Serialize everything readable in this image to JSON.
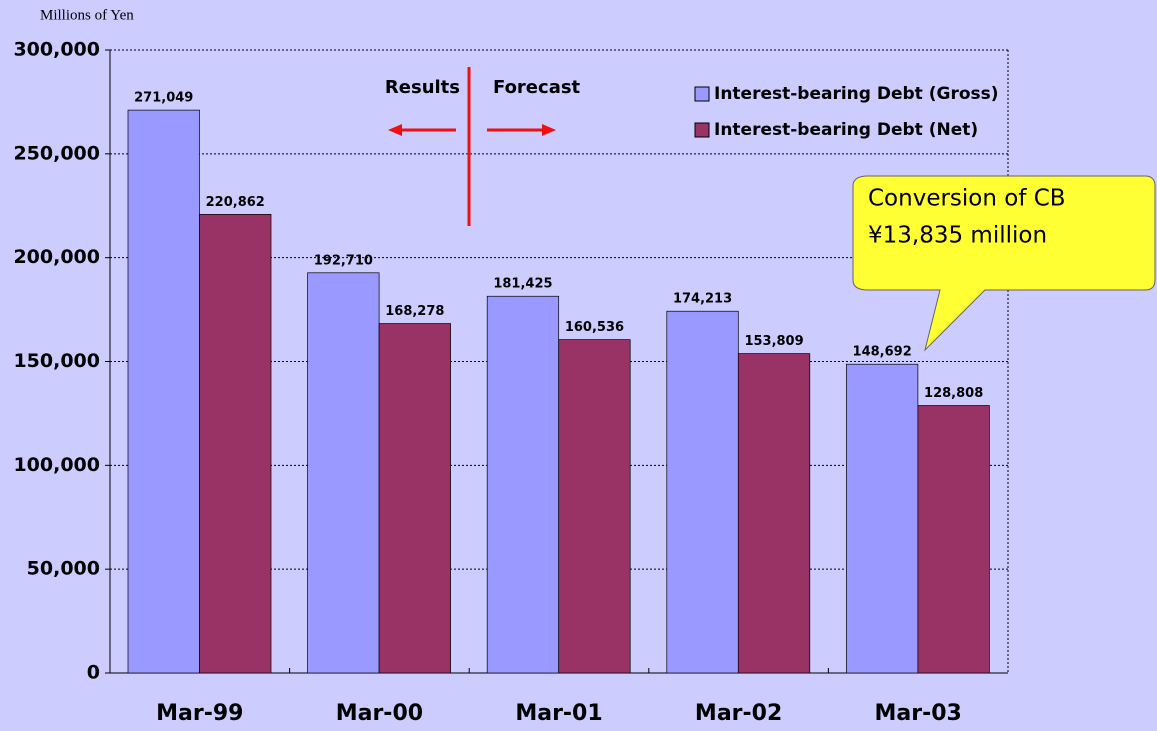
{
  "chart_data": {
    "type": "bar",
    "y_label": "Millions of Yen",
    "categories": [
      "Mar-99",
      "Mar-00",
      "Mar-01",
      "Mar-02",
      "Mar-03"
    ],
    "series": [
      {
        "name": "Interest-bearing Debt (Gross)",
        "color": "#9999ff",
        "values": [
          271049,
          192710,
          181425,
          174213,
          148692
        ],
        "value_labels": [
          "271,049",
          "192,710",
          "181,425",
          "174,213",
          "148,692"
        ]
      },
      {
        "name": "Interest-bearing Debt (Net)",
        "color": "#993366",
        "values": [
          220862,
          168278,
          160536,
          153809,
          128808
        ],
        "value_labels": [
          "220,862",
          "168,278",
          "160,536",
          "153,809",
          "128,808"
        ]
      }
    ],
    "ylim": [
      0,
      300000
    ],
    "yticks": [
      0,
      {
        "value": 50000,
        "label": "50,000"
      },
      {
        "value": 100000,
        "label": "100,000"
      },
      {
        "value": 150000,
        "label": "150,000"
      },
      {
        "value": 200000,
        "label": "200,000"
      },
      {
        "value": 250000,
        "label": "250,000"
      },
      {
        "value": 300000,
        "label": "300,000"
      }
    ],
    "grid": true,
    "legend": "top-right",
    "annotations": [
      "Results",
      "Forecast"
    ],
    "callout": [
      "Conversion of CB",
      "¥13,835 million"
    ]
  }
}
